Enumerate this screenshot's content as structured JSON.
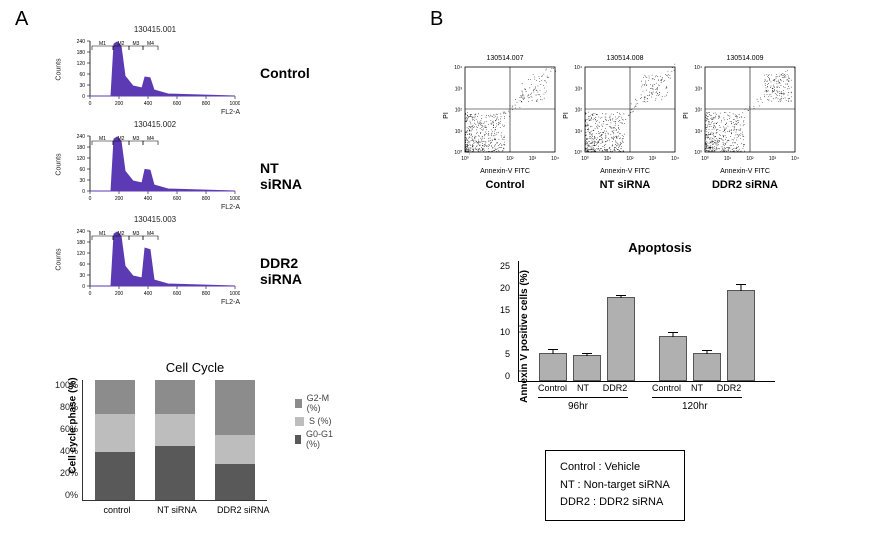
{
  "panel_labels": {
    "A": "A",
    "B": "B"
  },
  "hist": {
    "ylab": "Counts",
    "xlab": "FL2-A",
    "yticks": [
      "0",
      "30",
      "60",
      "120",
      "180",
      "240"
    ],
    "xticks": [
      "0",
      "200",
      "400",
      "600",
      "800",
      "1000"
    ],
    "markers": [
      "M1",
      "M2",
      "M3",
      "M4"
    ],
    "fill_color": "#5b3ab3",
    "plots": [
      {
        "title": "130415.001",
        "cond": "Control",
        "g2peak": 0.35
      },
      {
        "title": "130415.002",
        "cond": "NT siRNA",
        "g2peak": 0.4
      },
      {
        "title": "130415.003",
        "cond": "DDR2 siRNA",
        "g2peak": 0.7
      }
    ]
  },
  "stacked": {
    "title": "Cell Cycle",
    "ytitle": "Cell cycle phase (%)",
    "yticks": [
      "100%",
      "80%",
      "60%",
      "40%",
      "20%",
      "0%"
    ],
    "colors": {
      "g2m": "#8c8c8c",
      "s": "#bdbdbd",
      "g0g1": "#595959"
    },
    "legend": [
      {
        "key": "g2m",
        "label": "G2-M (%)"
      },
      {
        "key": "s",
        "label": "S (%)"
      },
      {
        "key": "g0g1",
        "label": "G0-G1 (%)"
      }
    ],
    "bars": [
      {
        "label": "control",
        "g0g1": 40,
        "s": 32,
        "g2m": 28
      },
      {
        "label": "NT siRNA",
        "g0g1": 45,
        "s": 27,
        "g2m": 28
      },
      {
        "label": "DDR2 siRNA",
        "g0g1": 30,
        "s": 24,
        "g2m": 46
      }
    ]
  },
  "flow": {
    "ylab": "PI",
    "xlab": "Annexin-V FITC",
    "plots": [
      {
        "title": "130514.007",
        "cond": "Control",
        "ur_shift": 0
      },
      {
        "title": "130514.008",
        "cond": "NT siRNA",
        "ur_shift": 2
      },
      {
        "title": "130514.009",
        "cond": "DDR2 siRNA",
        "ur_shift": 8
      }
    ]
  },
  "apop": {
    "title": "Apoptosis",
    "ytitle": "Annexin V positive cells (%)",
    "ymax": 25,
    "yticks": [
      "25",
      "20",
      "15",
      "10",
      "5",
      "0"
    ],
    "bar_color": "#b0b0b0",
    "groups": [
      {
        "label": "96hr",
        "bars": [
          {
            "label": "Control",
            "value": 5.5,
            "err": 1.0
          },
          {
            "label": "NT",
            "value": 5.0,
            "err": 0.6
          },
          {
            "label": "DDR2",
            "value": 17.0,
            "err": 0.8
          }
        ]
      },
      {
        "label": "120hr",
        "bars": [
          {
            "label": "Control",
            "value": 9.0,
            "err": 1.0
          },
          {
            "label": "NT",
            "value": 5.5,
            "err": 0.8
          },
          {
            "label": "DDR2",
            "value": 18.5,
            "err": 1.6
          }
        ]
      }
    ]
  },
  "key": {
    "lines": [
      "Control : Vehicle",
      "NT : Non-target siRNA",
      "DDR2 : DDR2 siRNA"
    ]
  }
}
